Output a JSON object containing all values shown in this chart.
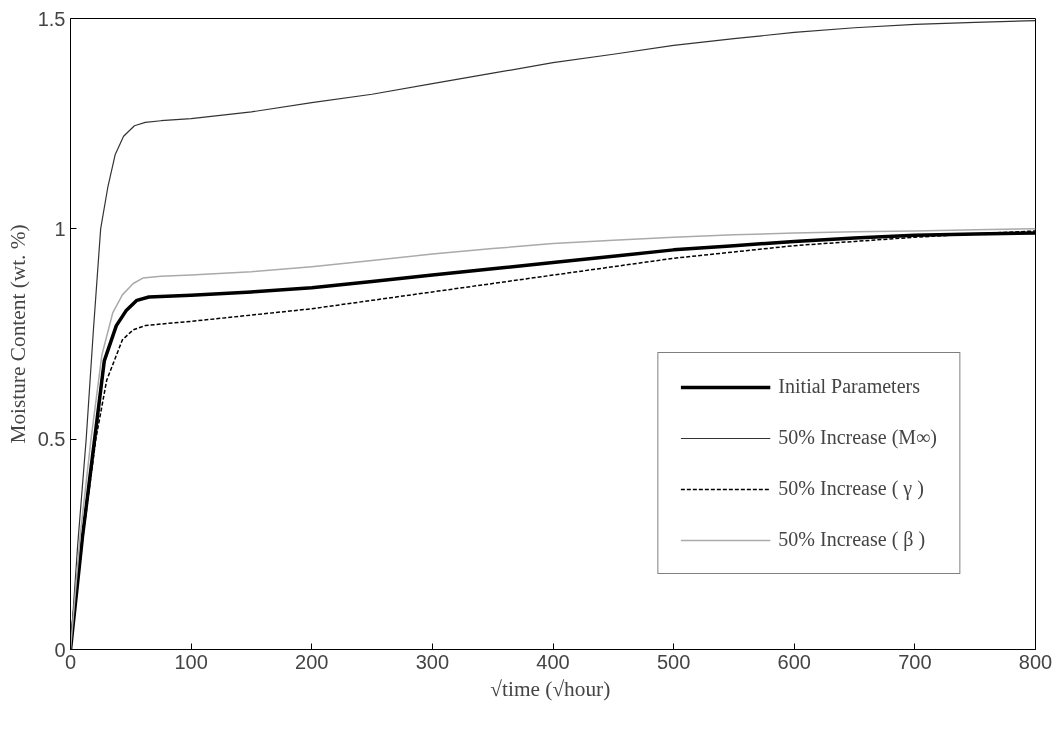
{
  "chart_data": {
    "type": "line",
    "xlabel": "√time  (√hour)",
    "ylabel": "Moisture Content (wt. %)",
    "xlim": [
      0,
      800
    ],
    "ylim": [
      0,
      1.5
    ],
    "xticks": [
      0,
      100,
      200,
      300,
      400,
      500,
      600,
      700,
      800
    ],
    "yticks": [
      0,
      0.5,
      1,
      1.5
    ],
    "grid": false,
    "legend": "bottom right",
    "marker": "none",
    "series": [
      {
        "name": "Initial Parameters",
        "color": "#000000",
        "line_style": "solid",
        "x": [
          0,
          10,
          20,
          28,
          38,
          46,
          55,
          65,
          80,
          100,
          150,
          200,
          250,
          300,
          350,
          400,
          450,
          500,
          550,
          600,
          650,
          700,
          750,
          800
        ],
        "values": [
          0,
          0.27,
          0.5,
          0.686,
          0.77,
          0.805,
          0.83,
          0.838,
          0.84,
          0.842,
          0.85,
          0.86,
          0.875,
          0.89,
          0.905,
          0.92,
          0.935,
          0.95,
          0.96,
          0.97,
          0.978,
          0.985,
          0.988,
          0.99
        ]
      },
      {
        "name": "50% Increase (M∞)",
        "color": "#333333",
        "line_style": "solid",
        "x": [
          0,
          6,
          13,
          19,
          25,
          31,
          37,
          44,
          53,
          62,
          75,
          100,
          150,
          200,
          250,
          300,
          350,
          400,
          450,
          500,
          550,
          600,
          650,
          700,
          750,
          800
        ],
        "values": [
          0,
          0.25,
          0.5,
          0.76,
          1.0,
          1.1,
          1.176,
          1.22,
          1.245,
          1.253,
          1.257,
          1.262,
          1.278,
          1.3,
          1.32,
          1.345,
          1.37,
          1.395,
          1.415,
          1.436,
          1.452,
          1.467,
          1.478,
          1.486,
          1.491,
          1.495
        ]
      },
      {
        "name": "50% Increase ( γ )",
        "color": "#000000",
        "line_style": "dashed",
        "x": [
          0,
          10,
          21,
          30,
          43,
          52,
          62,
          80,
          100,
          150,
          200,
          250,
          300,
          350,
          400,
          450,
          500,
          550,
          600,
          650,
          700,
          750,
          800
        ],
        "values": [
          0,
          0.26,
          0.5,
          0.64,
          0.736,
          0.76,
          0.77,
          0.775,
          0.78,
          0.795,
          0.81,
          0.83,
          0.85,
          0.87,
          0.89,
          0.91,
          0.93,
          0.945,
          0.96,
          0.97,
          0.98,
          0.988,
          0.995
        ]
      },
      {
        "name": "50% Increase ( β )",
        "color": "#aaaaaa",
        "line_style": "solid",
        "x": [
          0,
          8,
          17,
          26,
          35,
          43,
          52,
          60,
          75,
          100,
          150,
          200,
          250,
          300,
          350,
          400,
          450,
          500,
          550,
          600,
          650,
          700,
          750,
          800
        ],
        "values": [
          0,
          0.27,
          0.5,
          0.7,
          0.8,
          0.843,
          0.87,
          0.883,
          0.887,
          0.89,
          0.898,
          0.91,
          0.925,
          0.94,
          0.953,
          0.965,
          0.973,
          0.98,
          0.986,
          0.99,
          0.993,
          0.995,
          0.998,
          1.0
        ]
      }
    ]
  }
}
